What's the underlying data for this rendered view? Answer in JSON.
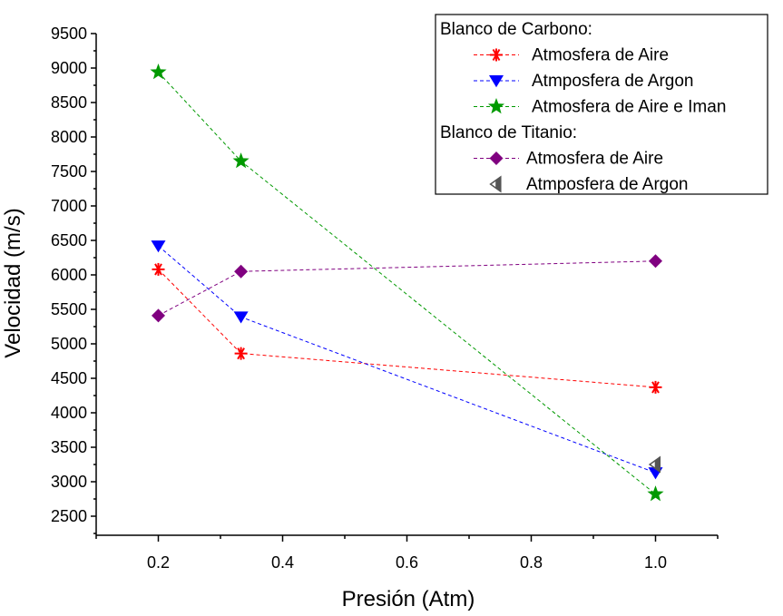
{
  "chart_data": {
    "type": "line",
    "xlabel": "Presión (Atm)",
    "ylabel": "Velocidad (m/s)",
    "xlim": [
      0.1,
      1.1
    ],
    "ylim": [
      2400,
      9500
    ],
    "x_ticks": [
      0.2,
      0.4,
      0.6,
      0.8,
      1.0
    ],
    "x_tick_labels": [
      "0.2",
      "0.4",
      "0.6",
      "0.8",
      "1.0"
    ],
    "y_ticks": [
      2500,
      3000,
      3500,
      4000,
      4500,
      5000,
      5500,
      6000,
      6500,
      7000,
      7500,
      8000,
      8500,
      9000,
      9500
    ],
    "y_tick_labels": [
      "2500",
      "3000",
      "3500",
      "4000",
      "4500",
      "5000",
      "5500",
      "6000",
      "6500",
      "7000",
      "7500",
      "8000",
      "8500",
      "9000",
      "9500"
    ],
    "grid": false,
    "legend": {
      "placement": "top-right",
      "groups": [
        {
          "title": "Blanco de Carbono:",
          "series": [
            0,
            1,
            2
          ]
        },
        {
          "title": "Blanco de Titanio:",
          "series": [
            3,
            4
          ]
        }
      ]
    },
    "series": [
      {
        "name": "Atmosfera de Aire",
        "group": "Blanco de Carbono:",
        "color": "#ff0000",
        "marker": "asterisk",
        "x": [
          0.2,
          0.333,
          1.0
        ],
        "y": [
          6080,
          4860,
          4370
        ]
      },
      {
        "name": "Atmposfera de Argon",
        "group": "Blanco de Carbono:",
        "color": "#0000ff",
        "marker": "triangle-down",
        "x": [
          0.2,
          0.333,
          1.0
        ],
        "y": [
          6420,
          5390,
          3130
        ]
      },
      {
        "name": "Atmosfera de Aire e Iman",
        "group": "Blanco de Carbono:",
        "color": "#009900",
        "marker": "star",
        "x": [
          0.2,
          0.333,
          1.0
        ],
        "y": [
          8940,
          7650,
          2820
        ]
      },
      {
        "name": "Atmosfera de Aire",
        "group": "Blanco de Titanio:",
        "color": "#800080",
        "marker": "diamond",
        "x": [
          0.2,
          0.333,
          1.0
        ],
        "y": [
          5410,
          6050,
          6200
        ]
      },
      {
        "name": "Atmposfera de Argon",
        "group": "Blanco de Titanio:",
        "color": "#555555",
        "marker": "triangle-left",
        "x": [
          1.0
        ],
        "y": [
          3250
        ]
      }
    ]
  }
}
